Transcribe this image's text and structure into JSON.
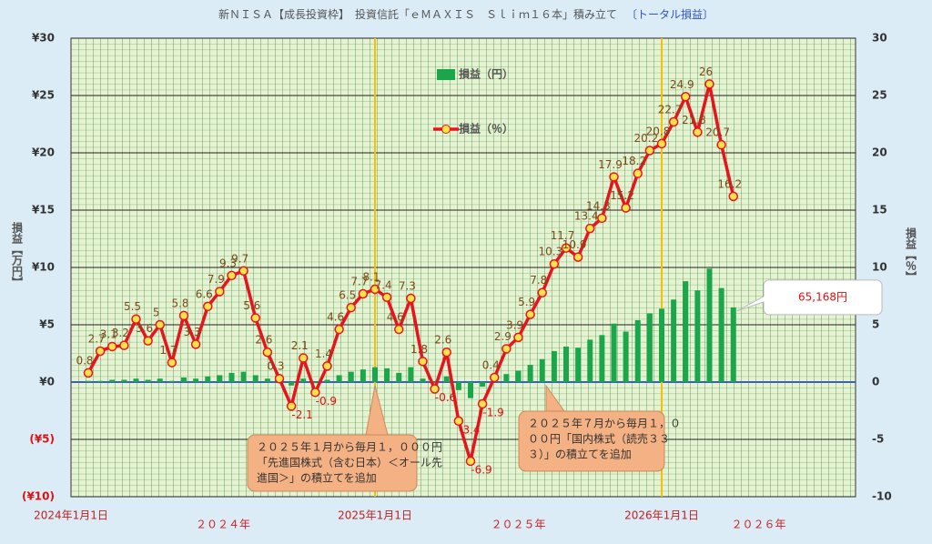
{
  "chart_data": {
    "type": "bar-line",
    "title": "新ＮＩＳＡ【成長投資枠】　投資信託「ｅＭＡＸＩＳ　Ｓｌｉｍ１６本」積み立て",
    "subtitle": "〔トータル損益〕",
    "y_label": "損益【万円】",
    "y2_label": "損益【％】",
    "categories": [
      "2024年1月1日",
      null,
      null,
      null,
      null,
      null,
      null,
      null,
      null,
      null,
      null,
      null,
      null,
      null,
      null,
      null,
      null,
      null,
      null,
      null,
      null,
      null,
      null,
      null,
      "2025年1月1日",
      null,
      null,
      null,
      null,
      null,
      null,
      null,
      null,
      null,
      null,
      null,
      null,
      null,
      null,
      null,
      null,
      null,
      null,
      null,
      null,
      null,
      null,
      null,
      "2026年1月1日",
      null,
      null,
      null,
      null,
      null,
      null
    ],
    "year_labels": [
      "２０２４年",
      "２０２５年",
      "２０２６年"
    ],
    "series": [
      {
        "name": "損益（円）",
        "color": "#1aa64a",
        "axis": "y",
        "values": [
          0.1,
          0.1,
          0.2,
          0.2,
          0.3,
          0.2,
          0.3,
          0.1,
          0.4,
          0.3,
          0.5,
          0.6,
          0.8,
          0.9,
          0.6,
          0.3,
          0.0,
          -0.3,
          0.3,
          -0.1,
          0.2,
          0.6,
          0.9,
          1.1,
          1.3,
          1.2,
          0.8,
          1.3,
          0.3,
          -0.1,
          0.5,
          -0.7,
          -1.4,
          -0.4,
          0.1,
          0.7,
          1.0,
          1.5,
          2.0,
          2.7,
          3.1,
          3.0,
          3.7,
          4.1,
          5.1,
          4.4,
          5.4,
          6.0,
          6.4,
          7.2,
          8.8,
          8.0,
          9.9,
          8.2,
          6.5168
        ],
        "value_labels": [
          null,
          null,
          null,
          null,
          null,
          null,
          null,
          null,
          null,
          null,
          null,
          null,
          null,
          null,
          null,
          null,
          null,
          null,
          null,
          null,
          null,
          null,
          null,
          null,
          null,
          null,
          null,
          null,
          null,
          null,
          null,
          null,
          null,
          null,
          null,
          null,
          null,
          null,
          null,
          null,
          null,
          null,
          null,
          null,
          null,
          null,
          null,
          null,
          null,
          null,
          null,
          null,
          null,
          null,
          "65,168円"
        ]
      },
      {
        "name": "損益（％）",
        "color": "#e8141c",
        "axis": "y2",
        "values": [
          0.8,
          2.7,
          3.1,
          3.2,
          5.5,
          3.6,
          5.0,
          1.7,
          5.8,
          3.3,
          6.6,
          7.9,
          9.3,
          9.7,
          5.6,
          2.6,
          0.3,
          -2.1,
          2.1,
          -0.9,
          1.4,
          4.6,
          6.5,
          7.7,
          8.1,
          7.4,
          4.6,
          7.3,
          1.8,
          -0.6,
          2.6,
          -3.4,
          -6.9,
          -1.9,
          0.4,
          2.9,
          3.9,
          5.9,
          7.8,
          10.3,
          11.7,
          10.9,
          13.4,
          14.3,
          17.9,
          15.2,
          18.2,
          20.2,
          20.8,
          22.7,
          24.9,
          21.8,
          26.0,
          20.7,
          16.2
        ]
      }
    ],
    "ylim": [
      -10,
      30
    ],
    "yticks": [
      {
        "value": -10,
        "label": "(¥10)"
      },
      {
        "value": -5,
        "label": "(¥5)"
      },
      {
        "value": 0,
        "label": "¥0"
      },
      {
        "value": 5,
        "label": "¥5"
      },
      {
        "value": 10,
        "label": "¥10"
      },
      {
        "value": 15,
        "label": "¥15"
      },
      {
        "value": 20,
        "label": "¥20"
      },
      {
        "value": 25,
        "label": "¥25"
      },
      {
        "value": 30,
        "label": "¥30"
      }
    ],
    "y2lim": [
      -10,
      30
    ],
    "y2ticks": [
      -10,
      -5,
      0,
      5,
      10,
      15,
      20,
      25,
      30
    ],
    "grid": true,
    "annotations": [
      {
        "lines": [
          "２０２５年１月から毎月１，０００円",
          "「先進国株式（含む日本）＜オール先",
          "進国＞」の積立てを追加"
        ]
      },
      {
        "lines": [
          "２０２５年７月から毎月１，０",
          "００円「国内株式（読売３３",
          "３）」の積立てを追加"
        ]
      }
    ]
  }
}
